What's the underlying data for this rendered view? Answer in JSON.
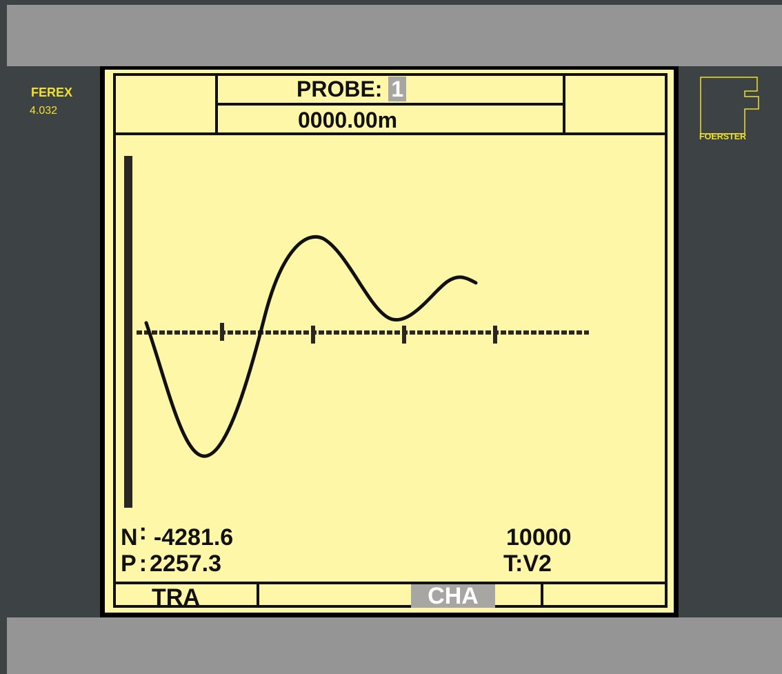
{
  "device": {
    "brand_name": "FEREX",
    "version": "4.032",
    "logo_text": "FOERSTER"
  },
  "header": {
    "probe_label": "PROBE:",
    "probe_value": "1",
    "distance": "0000.00m"
  },
  "readouts": {
    "n_label": "N",
    "n_sep": ":",
    "n_value": "-4281.6",
    "p_label": "P",
    "p_sep": ":",
    "p_value": "2257.3",
    "range": "10000",
    "mode": "T:V2"
  },
  "softkeys": {
    "key1": "TRA",
    "key2": "",
    "key3": "CHA",
    "key4": ""
  },
  "colors": {
    "screen_bg": "#fff7a8",
    "bezel": "#3d4345",
    "accent": "#f2e12a",
    "highlight": "#a7a6a2"
  }
}
